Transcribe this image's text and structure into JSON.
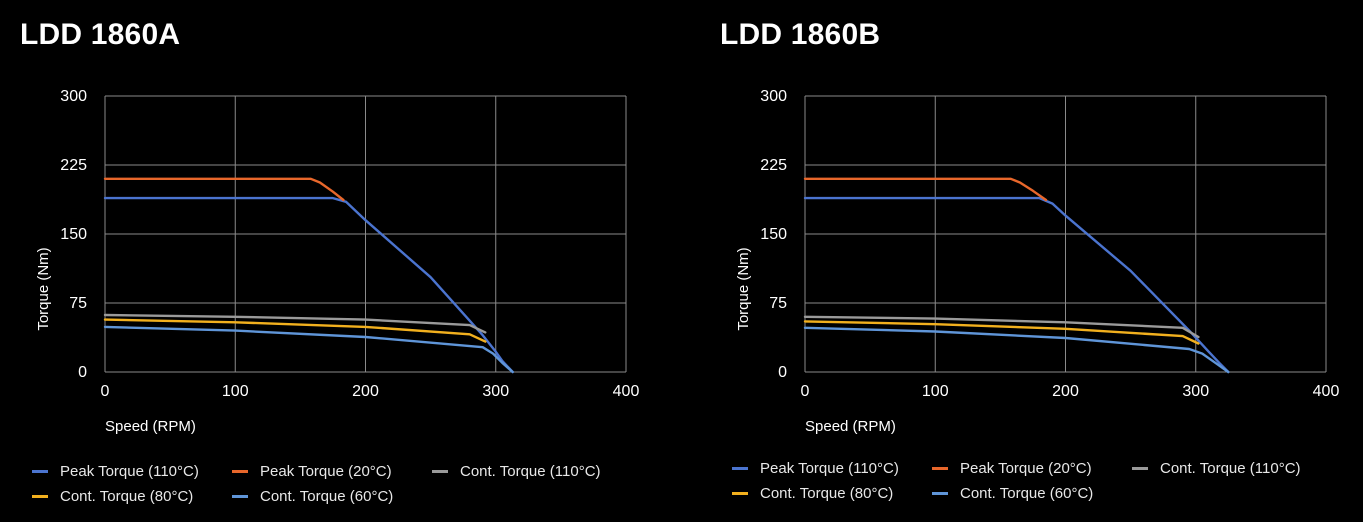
{
  "colors": {
    "background": "#000000",
    "grid": "#8a8a8a",
    "peak_110": "#4b74cf",
    "peak_20": "#e8672b",
    "cont_110": "#9a9a9a",
    "cont_80": "#f2b01e",
    "cont_60": "#5f95d8"
  },
  "chart_data": [
    {
      "type": "line",
      "title": "LDD 1860A",
      "xlabel": "Speed (RPM)",
      "ylabel": "Torque (Nm)",
      "xlim": [
        0,
        400
      ],
      "ylim": [
        0,
        300
      ],
      "x_ticks": [
        "0",
        "100",
        "200",
        "300",
        "400"
      ],
      "y_ticks": [
        "300",
        "225",
        "150",
        "75",
        "0"
      ],
      "grid": true,
      "legend_position": "bottom",
      "series": [
        {
          "name": "Peak Torque (110°C)",
          "color": "#4b74cf",
          "points": [
            [
              0,
              189
            ],
            [
              175,
              189
            ],
            [
              185,
              185
            ],
            [
              200,
              165
            ],
            [
              250,
              103
            ],
            [
              290,
              40
            ],
            [
              300,
              22
            ],
            [
              305,
              12
            ],
            [
              313,
              0
            ]
          ]
        },
        {
          "name": "Peak Torque (20°C)",
          "color": "#e8672b",
          "points": [
            [
              0,
              210
            ],
            [
              158,
              210
            ],
            [
              165,
              206
            ],
            [
              175,
              196
            ],
            [
              183,
              187
            ]
          ]
        },
        {
          "name": "Cont. Torque (110°C)",
          "color": "#9a9a9a",
          "points": [
            [
              0,
              62
            ],
            [
              100,
              60
            ],
            [
              200,
              57
            ],
            [
              280,
              51
            ],
            [
              292,
              43
            ]
          ]
        },
        {
          "name": "Cont. Torque (80°C)",
          "color": "#f2b01e",
          "points": [
            [
              0,
              57
            ],
            [
              100,
              54
            ],
            [
              200,
              49
            ],
            [
              280,
              41
            ],
            [
              292,
              33
            ]
          ]
        },
        {
          "name": "Cont. Torque (60°C)",
          "color": "#5f95d8",
          "points": [
            [
              0,
              49
            ],
            [
              100,
              45
            ],
            [
              200,
              38
            ],
            [
              290,
              27
            ],
            [
              298,
              20
            ],
            [
              305,
              10
            ],
            [
              313,
              0
            ]
          ]
        }
      ]
    },
    {
      "type": "line",
      "title": "LDD 1860B",
      "xlabel": "Speed (RPM)",
      "ylabel": "Torque (Nm)",
      "xlim": [
        0,
        400
      ],
      "ylim": [
        0,
        300
      ],
      "x_ticks": [
        "0",
        "100",
        "200",
        "300",
        "400"
      ],
      "y_ticks": [
        "300",
        "225",
        "150",
        "75",
        "0"
      ],
      "grid": true,
      "legend_position": "bottom",
      "series": [
        {
          "name": "Peak Torque (110°C)",
          "color": "#4b74cf",
          "points": [
            [
              0,
              189
            ],
            [
              180,
              189
            ],
            [
              190,
              183
            ],
            [
              200,
              170
            ],
            [
              250,
              110
            ],
            [
              295,
              45
            ],
            [
              310,
              22
            ],
            [
              318,
              10
            ],
            [
              325,
              0
            ]
          ]
        },
        {
          "name": "Peak Torque (20°C)",
          "color": "#e8672b",
          "points": [
            [
              0,
              210
            ],
            [
              158,
              210
            ],
            [
              165,
              206
            ],
            [
              175,
              197
            ],
            [
              185,
              187
            ]
          ]
        },
        {
          "name": "Cont. Torque (110°C)",
          "color": "#9a9a9a",
          "points": [
            [
              0,
              60
            ],
            [
              100,
              58
            ],
            [
              200,
              54
            ],
            [
              290,
              48
            ],
            [
              302,
              38
            ]
          ]
        },
        {
          "name": "Cont. Torque (80°C)",
          "color": "#f2b01e",
          "points": [
            [
              0,
              55
            ],
            [
              100,
              52
            ],
            [
              200,
              47
            ],
            [
              290,
              39
            ],
            [
              302,
              31
            ]
          ]
        },
        {
          "name": "Cont. Torque (60°C)",
          "color": "#5f95d8",
          "points": [
            [
              0,
              48
            ],
            [
              100,
              44
            ],
            [
              200,
              37
            ],
            [
              295,
              25
            ],
            [
              305,
              20
            ],
            [
              315,
              10
            ],
            [
              325,
              0
            ]
          ]
        }
      ]
    }
  ]
}
